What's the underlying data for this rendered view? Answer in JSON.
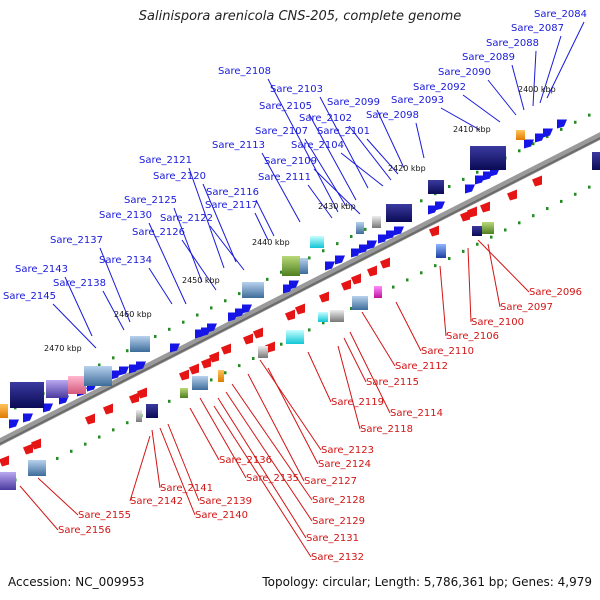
{
  "title": "Salinispora arenicola CNS-205, complete genome",
  "accession": "Accession: NC_009953",
  "summary": "Topology: circular; Length: 5,786,361 bp; Genes: 4,979",
  "colors": {
    "forward_label": "#1a1adb",
    "reverse_label": "#d21414",
    "forward_gene": "#1515e6",
    "reverse_gene": "#e61515",
    "backbone": "#8c8c8c",
    "tick": "#228b22"
  },
  "ruler": [
    "2400 kbp",
    "2410 kbp",
    "2420 kbp",
    "2430 kbp",
    "2440 kbp",
    "2450 kbp",
    "2460 kbp",
    "2470 kbp"
  ],
  "forward_labels": [
    "Sare_2084",
    "Sare_2087",
    "Sare_2088",
    "Sare_2089",
    "Sare_2090",
    "Sare_2092",
    "Sare_2093",
    "Sare_2098",
    "Sare_2099",
    "Sare_2101",
    "Sare_2102",
    "Sare_2103",
    "Sare_2104",
    "Sare_2105",
    "Sare_2107",
    "Sare_2108",
    "Sare_2109",
    "Sare_2111",
    "Sare_2113",
    "Sare_2116",
    "Sare_2117",
    "Sare_2120",
    "Sare_2121",
    "Sare_2122",
    "Sare_2125",
    "Sare_2126",
    "Sare_2130",
    "Sare_2134",
    "Sare_2137",
    "Sare_2138",
    "Sare_2143",
    "Sare_2145"
  ],
  "reverse_labels": [
    "Sare_2096",
    "Sare_2097",
    "Sare_2100",
    "Sare_2106",
    "Sare_2110",
    "Sare_2112",
    "Sare_2114",
    "Sare_2115",
    "Sare_2118",
    "Sare_2119",
    "Sare_2123",
    "Sare_2124",
    "Sare_2127",
    "Sare_2128",
    "Sare_2129",
    "Sare_2131",
    "Sare_2132",
    "Sare_2135",
    "Sare_2136",
    "Sare_2139",
    "Sare_2140",
    "Sare_2141",
    "Sare_2142",
    "Sare_2155",
    "Sare_2156"
  ]
}
